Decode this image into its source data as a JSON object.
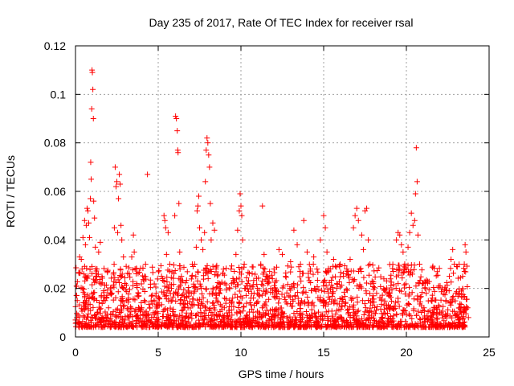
{
  "chart_data": {
    "type": "scatter",
    "title": "Day 235 of 2017, Rate Of TEC Index for receiver rsal",
    "xlabel": "GPS time / hours",
    "ylabel": "ROTI / TECUs",
    "xlim": [
      0,
      25
    ],
    "ylim": [
      0,
      0.12
    ],
    "x_ticks": [
      "0",
      "5",
      "10",
      "15",
      "20",
      "25"
    ],
    "y_ticks": [
      "0",
      "0.02",
      "0.04",
      "0.06",
      "0.08",
      "0.1",
      "0.12"
    ],
    "grid": true,
    "marker": "plus",
    "color": "#ff0000",
    "series": [
      {
        "points": [
          [
            0.0,
            0.007
          ],
          [
            0.15,
            0.009
          ],
          [
            0.25,
            0.033
          ],
          [
            0.35,
            0.032
          ],
          [
            0.4,
            0.028
          ],
          [
            0.45,
            0.041
          ],
          [
            0.5,
            0.026
          ],
          [
            0.55,
            0.048
          ],
          [
            0.6,
            0.038
          ],
          [
            0.65,
            0.046
          ],
          [
            0.7,
            0.053
          ],
          [
            0.75,
            0.052
          ],
          [
            0.8,
            0.047
          ],
          [
            0.85,
            0.041
          ],
          [
            0.9,
            0.057
          ],
          [
            0.92,
            0.072
          ],
          [
            0.95,
            0.065
          ],
          [
            0.98,
            0.094
          ],
          [
            1.0,
            0.11
          ],
          [
            1.02,
            0.109
          ],
          [
            1.05,
            0.102
          ],
          [
            1.08,
            0.09
          ],
          [
            1.1,
            0.056
          ],
          [
            1.15,
            0.049
          ],
          [
            1.2,
            0.037
          ],
          [
            1.3,
            0.028
          ],
          [
            1.4,
            0.035
          ],
          [
            1.5,
            0.039
          ],
          [
            1.6,
            0.025
          ],
          [
            1.7,
            0.019
          ],
          [
            1.8,
            0.015
          ],
          [
            2.0,
            0.012
          ],
          [
            2.2,
            0.018
          ],
          [
            2.35,
            0.045
          ],
          [
            2.4,
            0.07
          ],
          [
            2.45,
            0.062
          ],
          [
            2.5,
            0.064
          ],
          [
            2.55,
            0.043
          ],
          [
            2.6,
            0.057
          ],
          [
            2.65,
            0.067
          ],
          [
            2.7,
            0.063
          ],
          [
            2.75,
            0.046
          ],
          [
            2.8,
            0.04
          ],
          [
            2.9,
            0.033
          ],
          [
            3.0,
            0.022
          ],
          [
            3.2,
            0.016
          ],
          [
            3.4,
            0.033
          ],
          [
            3.5,
            0.042
          ],
          [
            3.55,
            0.035
          ],
          [
            3.6,
            0.028
          ],
          [
            3.7,
            0.022
          ],
          [
            3.8,
            0.018
          ],
          [
            4.0,
            0.012
          ],
          [
            4.2,
            0.01
          ],
          [
            4.35,
            0.067
          ],
          [
            4.5,
            0.012
          ],
          [
            4.7,
            0.01
          ],
          [
            5.0,
            0.014
          ],
          [
            5.2,
            0.025
          ],
          [
            5.35,
            0.05
          ],
          [
            5.4,
            0.048
          ],
          [
            5.45,
            0.045
          ],
          [
            5.5,
            0.034
          ],
          [
            5.6,
            0.043
          ],
          [
            5.7,
            0.03
          ],
          [
            5.8,
            0.02
          ],
          [
            6.0,
            0.05
          ],
          [
            6.05,
            0.091
          ],
          [
            6.1,
            0.09
          ],
          [
            6.15,
            0.085
          ],
          [
            6.18,
            0.077
          ],
          [
            6.2,
            0.076
          ],
          [
            6.25,
            0.055
          ],
          [
            6.3,
            0.035
          ],
          [
            6.4,
            0.025
          ],
          [
            6.6,
            0.015
          ],
          [
            6.8,
            0.012
          ],
          [
            7.0,
            0.018
          ],
          [
            7.2,
            0.03
          ],
          [
            7.3,
            0.037
          ],
          [
            7.35,
            0.052
          ],
          [
            7.4,
            0.054
          ],
          [
            7.45,
            0.058
          ],
          [
            7.5,
            0.045
          ],
          [
            7.6,
            0.04
          ],
          [
            7.7,
            0.036
          ],
          [
            7.8,
            0.043
          ],
          [
            7.85,
            0.064
          ],
          [
            7.9,
            0.077
          ],
          [
            7.95,
            0.082
          ],
          [
            8.0,
            0.08
          ],
          [
            8.05,
            0.075
          ],
          [
            8.1,
            0.07
          ],
          [
            8.15,
            0.055
          ],
          [
            8.2,
            0.04
          ],
          [
            8.3,
            0.047
          ],
          [
            8.4,
            0.044
          ],
          [
            8.5,
            0.028
          ],
          [
            8.7,
            0.02
          ],
          [
            9.0,
            0.012
          ],
          [
            9.3,
            0.01
          ],
          [
            9.5,
            0.016
          ],
          [
            9.6,
            0.027
          ],
          [
            9.7,
            0.034
          ],
          [
            9.8,
            0.044
          ],
          [
            9.9,
            0.052
          ],
          [
            9.95,
            0.059
          ],
          [
            10.0,
            0.054
          ],
          [
            10.05,
            0.05
          ],
          [
            10.1,
            0.04
          ],
          [
            10.2,
            0.03
          ],
          [
            10.4,
            0.022
          ],
          [
            10.6,
            0.016
          ],
          [
            10.8,
            0.013
          ],
          [
            11.0,
            0.02
          ],
          [
            11.2,
            0.03
          ],
          [
            11.3,
            0.054
          ],
          [
            11.4,
            0.034
          ],
          [
            11.6,
            0.025
          ],
          [
            11.8,
            0.02
          ],
          [
            12.0,
            0.028
          ],
          [
            12.3,
            0.036
          ],
          [
            12.5,
            0.034
          ],
          [
            12.7,
            0.025
          ],
          [
            13.0,
            0.031
          ],
          [
            13.2,
            0.044
          ],
          [
            13.4,
            0.038
          ],
          [
            13.6,
            0.03
          ],
          [
            13.8,
            0.048
          ],
          [
            14.0,
            0.035
          ],
          [
            14.2,
            0.028
          ],
          [
            14.4,
            0.033
          ],
          [
            14.6,
            0.028
          ],
          [
            14.8,
            0.04
          ],
          [
            15.0,
            0.05
          ],
          [
            15.1,
            0.045
          ],
          [
            15.2,
            0.035
          ],
          [
            15.4,
            0.028
          ],
          [
            15.6,
            0.032
          ],
          [
            15.8,
            0.022
          ],
          [
            16.0,
            0.03
          ],
          [
            16.2,
            0.025
          ],
          [
            16.4,
            0.028
          ],
          [
            16.6,
            0.032
          ],
          [
            16.8,
            0.045
          ],
          [
            16.9,
            0.05
          ],
          [
            17.0,
            0.053
          ],
          [
            17.1,
            0.048
          ],
          [
            17.3,
            0.042
          ],
          [
            17.4,
            0.036
          ],
          [
            17.5,
            0.052
          ],
          [
            17.6,
            0.053
          ],
          [
            17.7,
            0.04
          ],
          [
            17.8,
            0.03
          ],
          [
            18.0,
            0.022
          ],
          [
            18.2,
            0.018
          ],
          [
            18.5,
            0.015
          ],
          [
            18.8,
            0.013
          ],
          [
            19.0,
            0.018
          ],
          [
            19.2,
            0.027
          ],
          [
            19.4,
            0.04
          ],
          [
            19.5,
            0.043
          ],
          [
            19.6,
            0.042
          ],
          [
            19.7,
            0.038
          ],
          [
            19.8,
            0.035
          ],
          [
            19.9,
            0.03
          ],
          [
            20.0,
            0.028
          ],
          [
            20.1,
            0.037
          ],
          [
            20.2,
            0.043
          ],
          [
            20.3,
            0.051
          ],
          [
            20.4,
            0.046
          ],
          [
            20.5,
            0.048
          ],
          [
            20.55,
            0.059
          ],
          [
            20.6,
            0.078
          ],
          [
            20.65,
            0.064
          ],
          [
            20.7,
            0.042
          ],
          [
            20.8,
            0.03
          ],
          [
            21.0,
            0.022
          ],
          [
            21.2,
            0.018
          ],
          [
            21.5,
            0.015
          ],
          [
            21.8,
            0.012
          ],
          [
            22.0,
            0.01
          ],
          [
            22.2,
            0.009
          ],
          [
            22.4,
            0.015
          ],
          [
            22.6,
            0.025
          ],
          [
            22.7,
            0.032
          ],
          [
            22.8,
            0.036
          ],
          [
            22.9,
            0.03
          ],
          [
            23.0,
            0.018
          ],
          [
            23.2,
            0.012
          ],
          [
            23.4,
            0.025
          ],
          [
            23.5,
            0.03
          ],
          [
            23.55,
            0.038
          ],
          [
            23.6,
            0.035
          ],
          [
            23.7,
            0.012
          ],
          [
            23.75,
            0.008
          ]
        ],
        "background_band": {
          "x_range": [
            0,
            23.7
          ],
          "y_range": [
            0.004,
            0.03
          ],
          "density": 2200
        }
      }
    ]
  }
}
